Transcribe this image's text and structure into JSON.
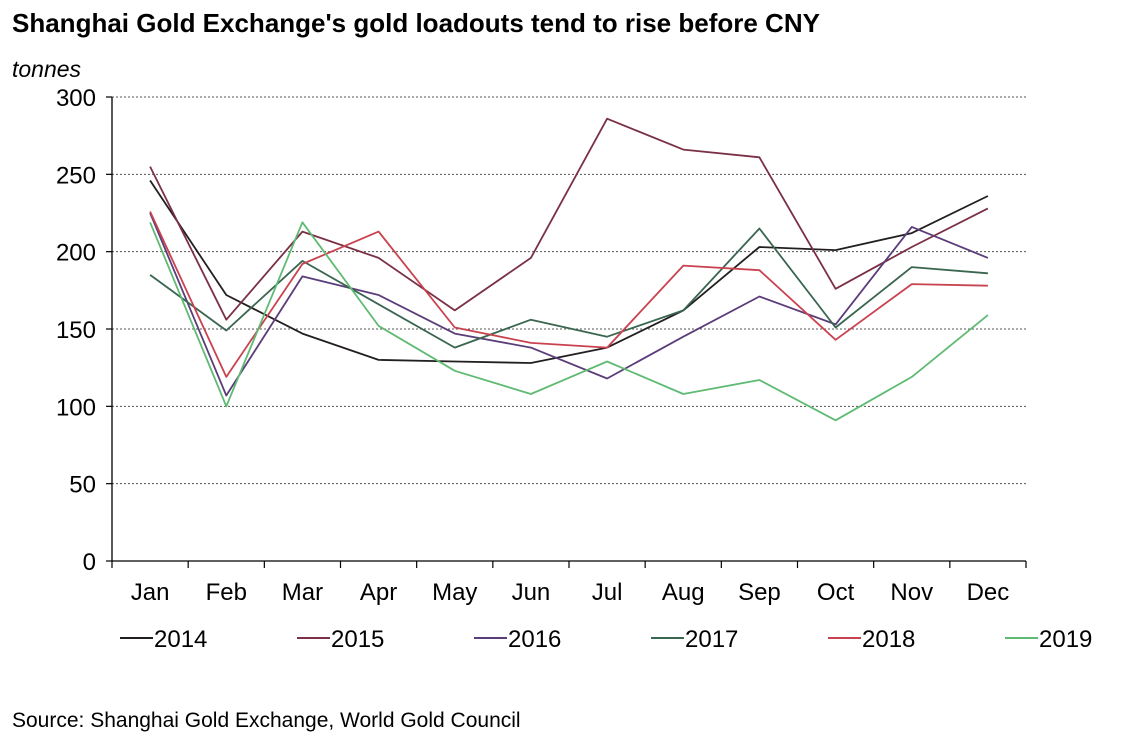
{
  "title": "Shanghai Gold Exchange's gold loadouts tend to rise before CNY",
  "unit_label": "tonnes",
  "source": "Source: Shanghai Gold Exchange, World Gold Council",
  "chart_data": {
    "type": "line",
    "categories": [
      "Jan",
      "Feb",
      "Mar",
      "Apr",
      "May",
      "Jun",
      "Jul",
      "Aug",
      "Sep",
      "Oct",
      "Nov",
      "Dec"
    ],
    "yticks": [
      "0",
      "50",
      "100",
      "150",
      "200",
      "250",
      "300"
    ],
    "ylim": [
      0,
      300
    ],
    "grid": true,
    "legend_position": "bottom",
    "series": [
      {
        "name": "2014",
        "color": "#231f20",
        "values": [
          246,
          172,
          147,
          130,
          129,
          128,
          138,
          162,
          203,
          201,
          212,
          236
        ]
      },
      {
        "name": "2015",
        "color": "#7a3045",
        "values": [
          255,
          156,
          213,
          196,
          162,
          196,
          286,
          266,
          261,
          176,
          203,
          228
        ]
      },
      {
        "name": "2016",
        "color": "#5b3d7a",
        "values": [
          225,
          107,
          184,
          172,
          147,
          138,
          118,
          145,
          171,
          153,
          216,
          196
        ]
      },
      {
        "name": "2017",
        "color": "#3a6650",
        "values": [
          185,
          149,
          194,
          166,
          138,
          156,
          145,
          162,
          215,
          151,
          190,
          186
        ]
      },
      {
        "name": "2018",
        "color": "#c9424f",
        "values": [
          226,
          119,
          192,
          213,
          151,
          141,
          138,
          191,
          188,
          143,
          179,
          178
        ]
      },
      {
        "name": "2019",
        "color": "#5fba73",
        "values": [
          219,
          100,
          219,
          152,
          123,
          108,
          129,
          108,
          117,
          91,
          119,
          159
        ]
      }
    ]
  }
}
